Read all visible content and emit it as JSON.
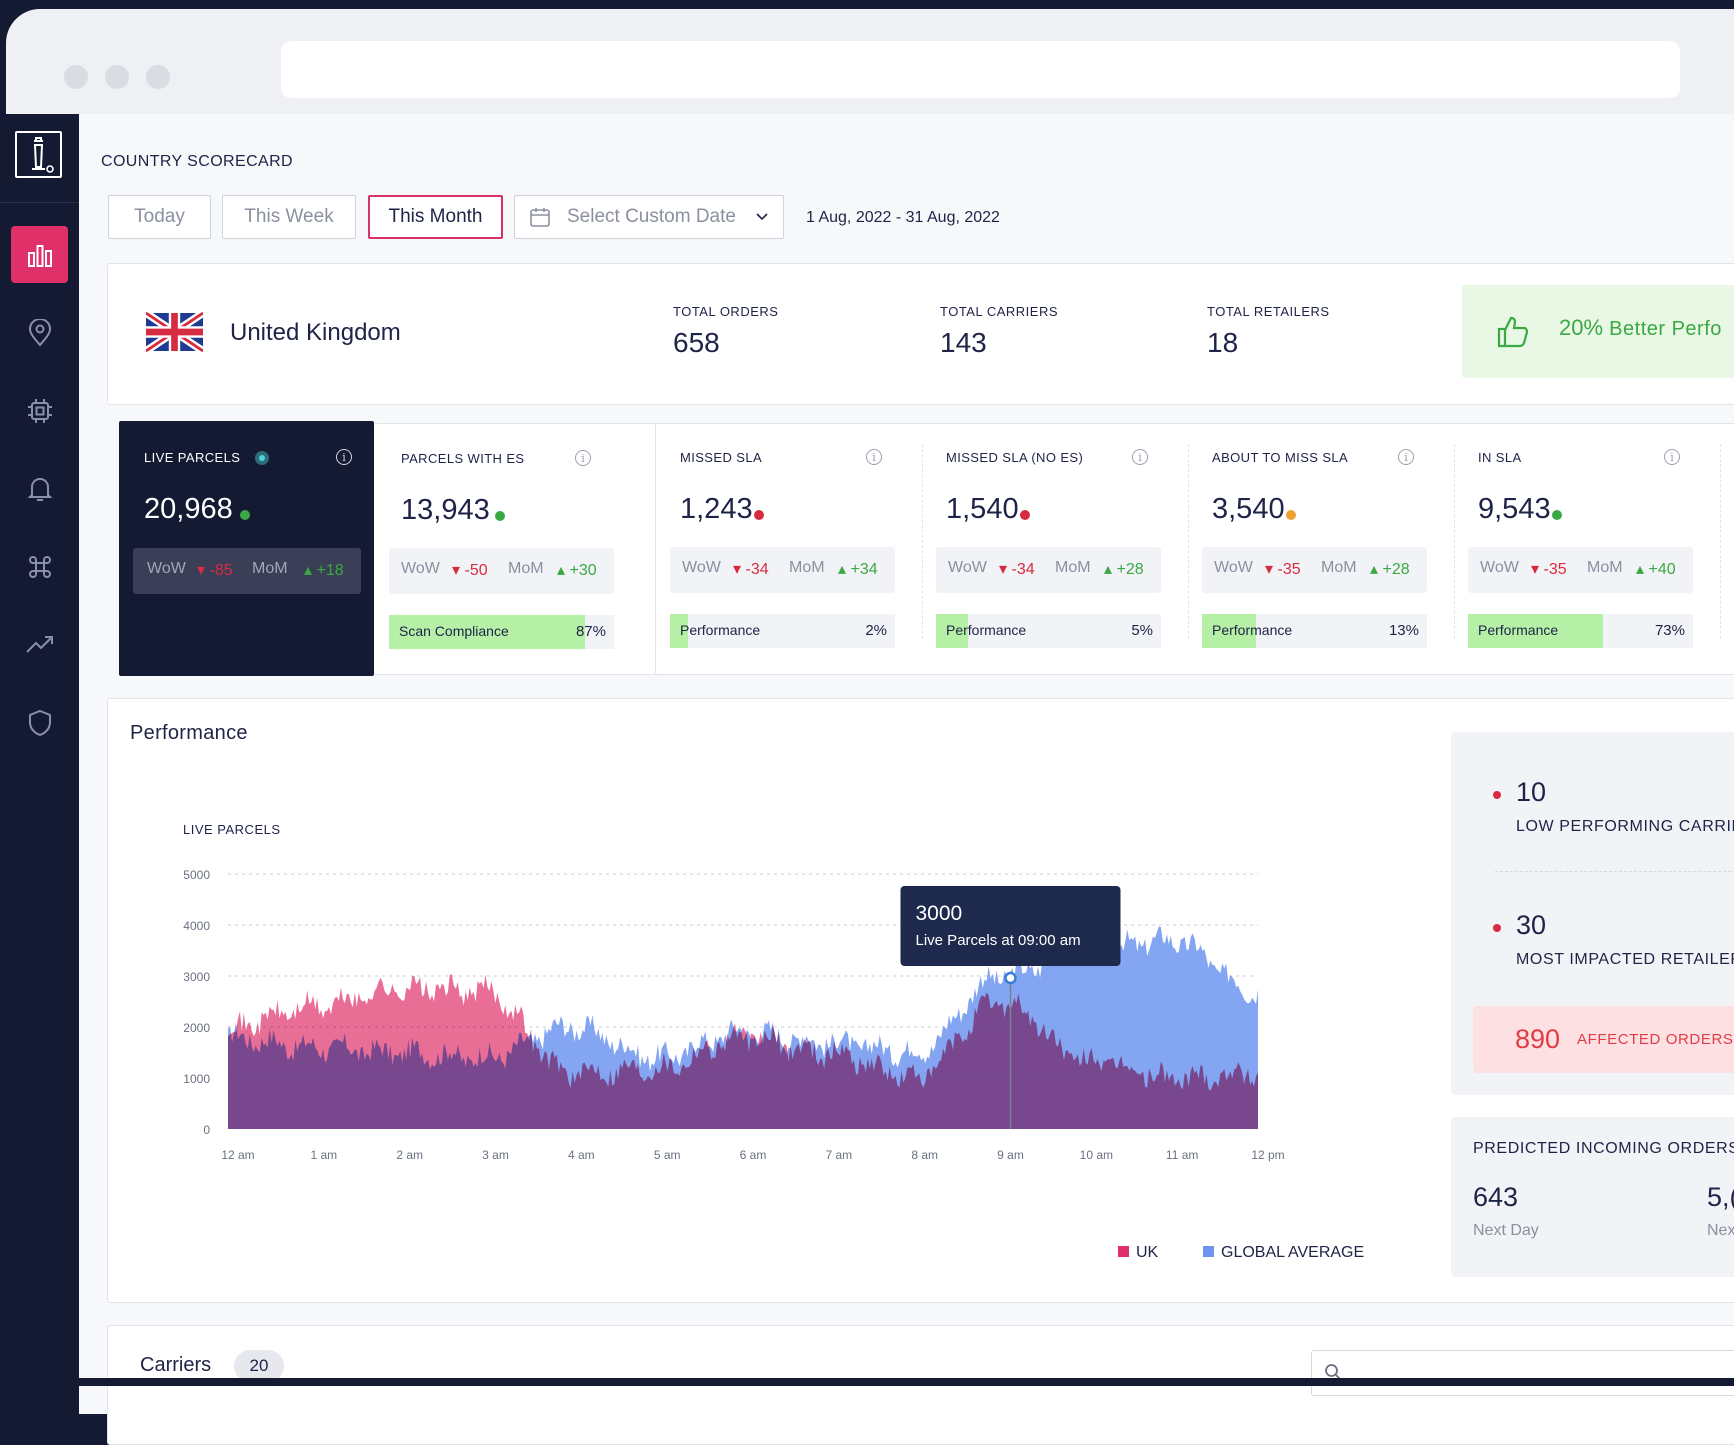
{
  "header": {
    "title": "COUNTRY SCORECARD"
  },
  "filters": {
    "today": "Today",
    "this_week": "This Week",
    "this_month": "This Month",
    "custom_date": "Select Custom Date",
    "date_range": "1 Aug, 2022 - 31 Aug, 2022"
  },
  "country": {
    "name": "United Kingdom",
    "total_orders_label": "TOTAL ORDERS",
    "total_orders": "658",
    "total_carriers_label": "TOTAL CARRIERS",
    "total_carriers": "143",
    "total_retailers_label": "TOTAL RETAILERS",
    "total_retailers": "18",
    "performance_pct": "20%",
    "performance_text": "Better Perfo"
  },
  "kpis": [
    {
      "label": "LIVE PARCELS",
      "value": "20,968",
      "dot": "#3aa843",
      "wow": "-85",
      "mom": "+18"
    },
    {
      "label": "PARCELS WITH ES",
      "value": "13,943",
      "dot": "#3aa843",
      "wow": "-50",
      "mom": "+30",
      "bar_label": "Scan Compliance",
      "bar_value": "87%",
      "bar_fill": 0.87
    },
    {
      "label": "MISSED SLA",
      "value": "1,243",
      "dot": "#d72b3f",
      "wow": "-34",
      "mom": "+34",
      "bar_label": "Performance",
      "bar_value": "2%",
      "bar_fill": 0.08
    },
    {
      "label": "MISSED SLA (NO ES)",
      "value": "1,540",
      "dot": "#d72b3f",
      "wow": "-34",
      "mom": "+28",
      "bar_label": "Performance",
      "bar_value": "5%",
      "bar_fill": 0.14
    },
    {
      "label": "ABOUT TO MISS SLA",
      "value": "3,540",
      "dot": "#f0a030",
      "wow": "-35",
      "mom": "+28",
      "bar_label": "Performance",
      "bar_value": "13%",
      "bar_fill": 0.24
    },
    {
      "label": "IN SLA",
      "value": "9,543",
      "dot": "#3aa843",
      "wow": "-35",
      "mom": "+40",
      "bar_label": "Performance",
      "bar_value": "73%",
      "bar_fill": 0.6
    }
  ],
  "wow_label": "WoW",
  "mom_label": "MoM",
  "performance": {
    "title": "Performance",
    "tooltip_value": "3000",
    "tooltip_text": "Live Parcels at 09:00 am"
  },
  "chart_data": {
    "type": "area",
    "ylabel": "LIVE PARCELS",
    "ylim": [
      0,
      5000
    ],
    "yticks": [
      "5000",
      "4000",
      "3000",
      "2000",
      "1000",
      "0"
    ],
    "x": [
      "12 am",
      "1 am",
      "2 am",
      "3 am",
      "4 am",
      "5 am",
      "6 am",
      "7 am",
      "8 am",
      "9 am",
      "10 am",
      "11 am",
      "12 pm"
    ],
    "series": [
      {
        "name": "UK",
        "color": "#e0306a",
        "values": [
          2000,
          2400,
          2750,
          2700,
          1100,
          1200,
          1800,
          1500,
          1000,
          2500,
          1350,
          1000,
          1100
        ]
      },
      {
        "name": "GLOBAL AVERAGE",
        "color": "#6d95f0",
        "values": [
          1800,
          1600,
          1500,
          1400,
          2000,
          1400,
          1900,
          1700,
          1500,
          3000,
          3500,
          3700,
          2700
        ]
      }
    ],
    "legend": "bottom-right",
    "grid": true
  },
  "side_panel": {
    "low_count": "10",
    "low_label": "LOW PERFORMING CARRIE",
    "impacted_count": "30",
    "impacted_label": "MOST IMPACTED RETAILER",
    "affected_count": "890",
    "affected_label": "AFFECTED ORDERS",
    "predicted_title": "PREDICTED INCOMING ORDERS",
    "next_day_value": "643",
    "next_day_label": "Next Day",
    "next_value": "5,(",
    "next_label": "Nex"
  },
  "carriers": {
    "title": "Carriers",
    "count": "20"
  },
  "icons": [
    "tower-logo-icon",
    "bar-chart-icon",
    "map-pin-icon",
    "chip-icon",
    "bell-icon",
    "command-icon",
    "trend-icon",
    "shield-icon",
    "calendar-icon",
    "chevron-down-icon",
    "thumbs-up-icon",
    "info-icon",
    "search-icon"
  ]
}
